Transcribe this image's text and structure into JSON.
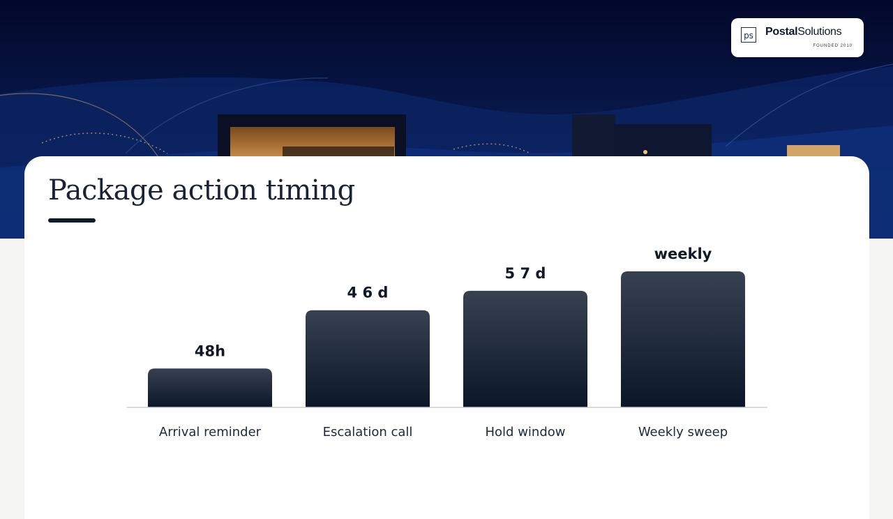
{
  "brand": {
    "mark": "ps",
    "name_bold": "Postal",
    "name_rest": "Solutions",
    "tagline": "FOUNDED 2010"
  },
  "title": "Package action timing",
  "chart_data": {
    "type": "bar",
    "title": "Package action timing",
    "xlabel": "",
    "ylabel": "",
    "grid": false,
    "legend": "none",
    "categories": [
      "Arrival reminder",
      "Escalation call",
      "Hold window",
      "Weekly sweep"
    ],
    "values": [
      2,
      5,
      6,
      7
    ],
    "value_labels": [
      "48h",
      "4 6 d",
      "5 7 d",
      "weekly"
    ],
    "ylim": [
      0,
      7
    ],
    "bar_color_top": "#374151",
    "bar_color_bottom": "#0b1628"
  }
}
